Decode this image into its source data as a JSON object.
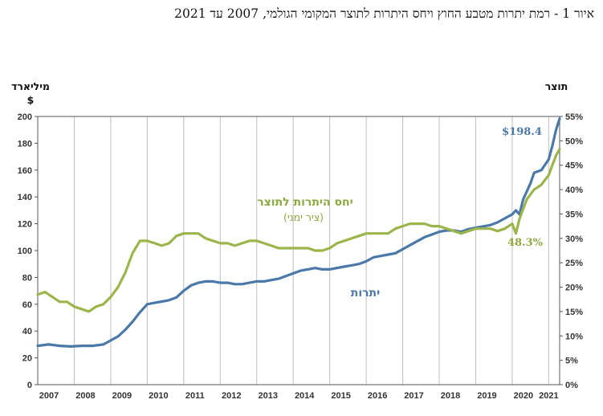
{
  "title": "איור 1 - רמת יתרות מטבע החוץ ויחס היתרות לתוצר המקומי הגולמי, 2007 עד 2021",
  "colors": {
    "reserves": "#4a78a8",
    "ratio": "#9bb54a",
    "grid": "#bdbdbd",
    "axis": "#555555"
  },
  "chart_data": {
    "type": "line",
    "left_axis": {
      "unit_line1": "מיליארד",
      "unit_line2": "$",
      "range": [
        0,
        200
      ],
      "ticks": [
        "0",
        "20",
        "40",
        "60",
        "80",
        "100",
        "120",
        "140",
        "160",
        "180",
        "200"
      ]
    },
    "right_axis": {
      "unit": "תוצר",
      "range": [
        0,
        55
      ],
      "ticks": [
        "0%",
        "5%",
        "10%",
        "15%",
        "20%",
        "25%",
        "30%",
        "35%",
        "40%",
        "45%",
        "50%",
        "55%"
      ]
    },
    "x_range": [
      2007,
      2021.3
    ],
    "years": [
      "2007",
      "2008",
      "2009",
      "2010",
      "2011",
      "2012",
      "2013",
      "2014",
      "2015",
      "2016",
      "2017",
      "2018",
      "2019",
      "2020",
      "2021"
    ],
    "series": [
      {
        "name": "יתרות",
        "axis": "left",
        "end_label": "$198.4",
        "points": [
          [
            2007,
            29
          ],
          [
            2007.3,
            30
          ],
          [
            2007.6,
            29
          ],
          [
            2007.9,
            28.5
          ],
          [
            2008.2,
            29
          ],
          [
            2008.5,
            29
          ],
          [
            2008.8,
            30
          ],
          [
            2009.0,
            33
          ],
          [
            2009.2,
            36
          ],
          [
            2009.4,
            41
          ],
          [
            2009.6,
            47
          ],
          [
            2009.8,
            54
          ],
          [
            2010.0,
            60
          ],
          [
            2010.2,
            61
          ],
          [
            2010.4,
            62
          ],
          [
            2010.6,
            63
          ],
          [
            2010.8,
            65
          ],
          [
            2011.0,
            70
          ],
          [
            2011.2,
            74
          ],
          [
            2011.4,
            76
          ],
          [
            2011.6,
            77
          ],
          [
            2011.8,
            77
          ],
          [
            2012.0,
            76
          ],
          [
            2012.2,
            76
          ],
          [
            2012.4,
            75
          ],
          [
            2012.6,
            75
          ],
          [
            2012.8,
            76
          ],
          [
            2013.0,
            77
          ],
          [
            2013.2,
            77
          ],
          [
            2013.4,
            78
          ],
          [
            2013.6,
            79
          ],
          [
            2013.8,
            81
          ],
          [
            2014.0,
            83
          ],
          [
            2014.2,
            85
          ],
          [
            2014.4,
            86
          ],
          [
            2014.6,
            87
          ],
          [
            2014.8,
            86
          ],
          [
            2015.0,
            86
          ],
          [
            2015.2,
            87
          ],
          [
            2015.4,
            88
          ],
          [
            2015.6,
            89
          ],
          [
            2015.8,
            90
          ],
          [
            2016.0,
            92
          ],
          [
            2016.2,
            95
          ],
          [
            2016.4,
            96
          ],
          [
            2016.6,
            97
          ],
          [
            2016.8,
            98
          ],
          [
            2017.0,
            101
          ],
          [
            2017.2,
            104
          ],
          [
            2017.4,
            107
          ],
          [
            2017.6,
            110
          ],
          [
            2017.8,
            112
          ],
          [
            2018.0,
            114
          ],
          [
            2018.2,
            115
          ],
          [
            2018.4,
            115
          ],
          [
            2018.6,
            114
          ],
          [
            2018.8,
            116
          ],
          [
            2019.0,
            117
          ],
          [
            2019.2,
            118
          ],
          [
            2019.4,
            119
          ],
          [
            2019.6,
            121
          ],
          [
            2019.8,
            124
          ],
          [
            2020.0,
            127
          ],
          [
            2020.1,
            130
          ],
          [
            2020.2,
            127
          ],
          [
            2020.3,
            138
          ],
          [
            2020.5,
            150
          ],
          [
            2020.6,
            158
          ],
          [
            2020.8,
            160
          ],
          [
            2021.0,
            168
          ],
          [
            2021.1,
            178
          ],
          [
            2021.2,
            190
          ],
          [
            2021.3,
            198.4
          ]
        ]
      },
      {
        "name": "יחס היתרות לתוצר",
        "sub": "(ציר ימני)",
        "axis": "right",
        "end_label": "48.3%",
        "points": [
          [
            2007,
            18.5
          ],
          [
            2007.2,
            19
          ],
          [
            2007.4,
            18
          ],
          [
            2007.6,
            17
          ],
          [
            2007.8,
            17
          ],
          [
            2008.0,
            16
          ],
          [
            2008.2,
            15.5
          ],
          [
            2008.4,
            15
          ],
          [
            2008.6,
            16
          ],
          [
            2008.8,
            16.5
          ],
          [
            2009.0,
            18
          ],
          [
            2009.2,
            20
          ],
          [
            2009.4,
            23
          ],
          [
            2009.6,
            27
          ],
          [
            2009.8,
            29.5
          ],
          [
            2010.0,
            29.5
          ],
          [
            2010.2,
            29
          ],
          [
            2010.4,
            28.5
          ],
          [
            2010.6,
            29
          ],
          [
            2010.8,
            30.5
          ],
          [
            2011.0,
            31
          ],
          [
            2011.2,
            31
          ],
          [
            2011.4,
            31
          ],
          [
            2011.6,
            30
          ],
          [
            2011.8,
            29.5
          ],
          [
            2012.0,
            29
          ],
          [
            2012.2,
            29
          ],
          [
            2012.4,
            28.5
          ],
          [
            2012.6,
            29
          ],
          [
            2012.8,
            29.5
          ],
          [
            2013.0,
            29.5
          ],
          [
            2013.2,
            29
          ],
          [
            2013.4,
            28.5
          ],
          [
            2013.6,
            28
          ],
          [
            2013.8,
            28
          ],
          [
            2014.0,
            28
          ],
          [
            2014.2,
            28
          ],
          [
            2014.4,
            28
          ],
          [
            2014.6,
            27.5
          ],
          [
            2014.8,
            27.5
          ],
          [
            2015.0,
            28
          ],
          [
            2015.2,
            29
          ],
          [
            2015.4,
            29.5
          ],
          [
            2015.6,
            30
          ],
          [
            2015.8,
            30.5
          ],
          [
            2016.0,
            31
          ],
          [
            2016.2,
            31
          ],
          [
            2016.4,
            31
          ],
          [
            2016.6,
            31
          ],
          [
            2016.8,
            32
          ],
          [
            2017.0,
            32.5
          ],
          [
            2017.2,
            33
          ],
          [
            2017.4,
            33
          ],
          [
            2017.6,
            33
          ],
          [
            2017.8,
            32.5
          ],
          [
            2018.0,
            32.5
          ],
          [
            2018.2,
            32
          ],
          [
            2018.4,
            31.5
          ],
          [
            2018.6,
            31
          ],
          [
            2018.8,
            31.5
          ],
          [
            2019.0,
            32
          ],
          [
            2019.2,
            32
          ],
          [
            2019.4,
            32
          ],
          [
            2019.6,
            31.5
          ],
          [
            2019.8,
            32
          ],
          [
            2020.0,
            33
          ],
          [
            2020.1,
            31
          ],
          [
            2020.2,
            34
          ],
          [
            2020.4,
            38
          ],
          [
            2020.6,
            40
          ],
          [
            2020.8,
            41
          ],
          [
            2021.0,
            43
          ],
          [
            2021.1,
            45
          ],
          [
            2021.2,
            47
          ],
          [
            2021.3,
            48.3
          ]
        ]
      }
    ]
  }
}
